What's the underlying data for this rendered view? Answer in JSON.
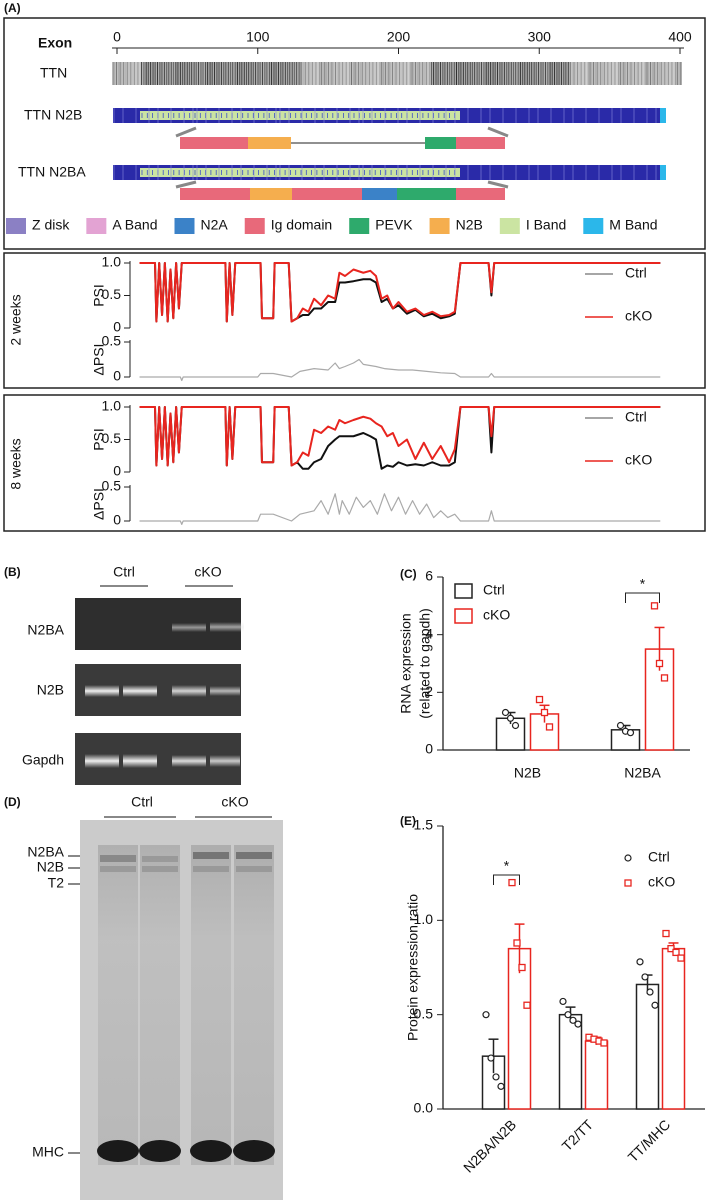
{
  "panel_labels": [
    "(A)",
    "(B)",
    "(C)",
    "(D)",
    "(E)"
  ],
  "gel_b": {
    "groups": [
      "Ctrl",
      "cKO"
    ],
    "rows": [
      "N2BA",
      "N2B",
      "Gapdh"
    ]
  },
  "gel_d": {
    "groups": [
      "Ctrl",
      "cKO"
    ],
    "markers": [
      "N2BA",
      "N2B",
      "T2",
      "MHC"
    ]
  },
  "chart_data": [
    {
      "type": "track",
      "xlabel": "Exon",
      "xlim": [
        0,
        400
      ],
      "xticks": [
        0,
        100,
        200,
        300,
        400
      ],
      "tracks": [
        "TTN",
        "TTN N2B",
        "TTN N2BA"
      ],
      "legend": [
        {
          "name": "Z disk",
          "color": "#8b80c4"
        },
        {
          "name": "A Band",
          "color": "#e3a3d3"
        },
        {
          "name": "N2A",
          "color": "#3b82c8"
        },
        {
          "name": "Ig domain",
          "color": "#e8697a"
        },
        {
          "name": "PEVK",
          "color": "#2eaa6c"
        },
        {
          "name": "N2B",
          "color": "#f5ae4e"
        },
        {
          "name": "I Band",
          "color": "#cbe4a2"
        },
        {
          "name": "M Band",
          "color": "#2bb7ea"
        }
      ]
    },
    {
      "type": "line",
      "side_label": "2 weeks",
      "ylabel": "PSI",
      "xlim": [
        0,
        400
      ],
      "ylim": [
        0,
        1
      ],
      "yticks": [
        0,
        0.5,
        {
          "value": 1,
          "label": "1.0"
        }
      ],
      "x": [
        16,
        27,
        28,
        30,
        32,
        34,
        36,
        38,
        40,
        42,
        44,
        46,
        48,
        77,
        78,
        80,
        82,
        84,
        86,
        102,
        103,
        111,
        112,
        122,
        124,
        128,
        132,
        136,
        140,
        145,
        150,
        155,
        158,
        162,
        168,
        175,
        180,
        184,
        188,
        192,
        196,
        200,
        206,
        212,
        218,
        224,
        230,
        236,
        240,
        244,
        264,
        266,
        268,
        386
      ],
      "series": [
        {
          "name": "Ctrl",
          "color": "#111111",
          "values": [
            1,
            1,
            0.1,
            1,
            0.2,
            1,
            0.1,
            0.9,
            0.15,
            1,
            0.3,
            1,
            1,
            1,
            0.1,
            1,
            0.2,
            1,
            1,
            1,
            0.15,
            0.15,
            1,
            1,
            0.1,
            0.15,
            0.2,
            0.2,
            0.3,
            0.3,
            0.4,
            0.4,
            0.7,
            0.7,
            0.72,
            0.75,
            0.75,
            0.7,
            0.4,
            0.45,
            0.3,
            0.35,
            0.22,
            0.28,
            0.18,
            0.22,
            0.15,
            0.18,
            0.22,
            1,
            1,
            0.5,
            1,
            1
          ]
        },
        {
          "name": "cKO",
          "color": "#e8251f",
          "values": [
            1,
            1,
            0.1,
            1,
            0.2,
            1,
            0.1,
            0.9,
            0.15,
            1,
            0.3,
            1,
            1,
            1,
            0.1,
            1,
            0.2,
            1,
            1,
            1,
            0.15,
            0.15,
            1,
            1,
            0.1,
            0.15,
            0.3,
            0.25,
            0.45,
            0.35,
            0.5,
            0.45,
            0.85,
            0.8,
            0.9,
            0.85,
            0.88,
            0.8,
            0.45,
            0.5,
            0.3,
            0.4,
            0.25,
            0.3,
            0.2,
            0.25,
            0.18,
            0.2,
            0.25,
            1,
            1,
            0.55,
            1,
            1
          ]
        }
      ]
    },
    {
      "type": "line",
      "ylabel": "ΔPSI",
      "xlim": [
        0,
        400
      ],
      "ylim": [
        0,
        0.5
      ],
      "yticks": [
        0,
        0.5
      ],
      "x": [
        16,
        45,
        46,
        47,
        100,
        102,
        111,
        124,
        130,
        140,
        150,
        155,
        158,
        162,
        168,
        172,
        175,
        184,
        190,
        200,
        210,
        220,
        230,
        240,
        244,
        264,
        266,
        268,
        386
      ],
      "series": [
        {
          "color": "#aaaaaa",
          "values": [
            0,
            0,
            -0.05,
            0,
            0,
            0.05,
            0.05,
            0,
            0.08,
            0.12,
            0.1,
            0.2,
            0.12,
            0.15,
            0.2,
            0.25,
            0.18,
            0.15,
            0.12,
            0.1,
            0.1,
            0.08,
            0.06,
            0.05,
            0,
            0,
            0.05,
            0,
            0
          ]
        }
      ]
    },
    {
      "type": "line",
      "side_label": "8 weeks",
      "ylabel": "PSI",
      "xlim": [
        0,
        400
      ],
      "ylim": [
        0,
        1
      ],
      "yticks": [
        0,
        0.5,
        {
          "value": 1,
          "label": "1.0"
        }
      ],
      "x": [
        16,
        27,
        28,
        30,
        32,
        34,
        36,
        38,
        40,
        42,
        44,
        46,
        48,
        77,
        78,
        80,
        82,
        84,
        86,
        102,
        103,
        111,
        112,
        122,
        124,
        128,
        132,
        136,
        140,
        145,
        150,
        155,
        158,
        162,
        168,
        175,
        180,
        184,
        188,
        192,
        196,
        200,
        206,
        212,
        218,
        224,
        230,
        236,
        240,
        244,
        264,
        266,
        268,
        386
      ],
      "series": [
        {
          "name": "Ctrl",
          "color": "#111111",
          "values": [
            1,
            1,
            0.1,
            1,
            0.2,
            1,
            0.1,
            0.9,
            0.15,
            1,
            0.3,
            1,
            1,
            1,
            0.1,
            1,
            0.2,
            1,
            1,
            1,
            0.15,
            0.15,
            1,
            1,
            0.1,
            0.15,
            0.05,
            0.05,
            0.15,
            0.2,
            0.4,
            0.5,
            0.55,
            0.55,
            0.55,
            0.6,
            0.55,
            0.5,
            0.05,
            0.1,
            0.08,
            0.15,
            0.1,
            0.12,
            0.1,
            0.15,
            0.1,
            0.1,
            0.15,
            1,
            1,
            0.3,
            1,
            1
          ]
        },
        {
          "name": "cKO",
          "color": "#e8251f",
          "values": [
            1,
            1,
            0.1,
            1,
            0.2,
            1,
            0.1,
            0.9,
            0.15,
            1,
            0.3,
            1,
            1,
            1,
            0.1,
            1,
            0.2,
            1,
            1,
            1,
            0.15,
            0.15,
            1,
            1,
            0.1,
            0.15,
            0.3,
            0.25,
            0.65,
            0.6,
            0.7,
            0.65,
            0.8,
            0.75,
            0.8,
            0.85,
            0.82,
            0.75,
            0.7,
            0.55,
            0.6,
            0.4,
            0.5,
            0.2,
            0.45,
            0.2,
            0.4,
            0.15,
            0.35,
            1,
            1,
            0.55,
            1,
            1
          ]
        }
      ]
    },
    {
      "type": "line",
      "ylabel": "ΔPSI",
      "xlim": [
        0,
        400
      ],
      "ylim": [
        0,
        0.5
      ],
      "yticks": [
        0,
        0.5
      ],
      "x": [
        16,
        45,
        46,
        47,
        100,
        102,
        111,
        124,
        130,
        140,
        145,
        150,
        155,
        158,
        160,
        165,
        170,
        175,
        180,
        185,
        190,
        195,
        200,
        205,
        210,
        215,
        220,
        225,
        230,
        235,
        240,
        244,
        264,
        266,
        268,
        386
      ],
      "series": [
        {
          "color": "#aaaaaa",
          "values": [
            0,
            0,
            -0.05,
            0,
            0,
            0.1,
            0.1,
            0,
            0.1,
            0.15,
            0.3,
            0.1,
            0.4,
            0.1,
            0.3,
            0.1,
            0.35,
            0.2,
            0.3,
            0.1,
            0.4,
            0.15,
            0.35,
            0.1,
            0.3,
            0.1,
            0.25,
            0.05,
            0.15,
            0.05,
            0.1,
            0,
            0,
            0.15,
            0,
            0
          ]
        }
      ]
    },
    {
      "type": "bar",
      "ylabel": [
        "RNA expression",
        "(related to gapdh)"
      ],
      "significance": "*",
      "legend": "upper left",
      "legend_marker": "box",
      "categories": [
        "N2B",
        "N2BA"
      ],
      "ylim": [
        0,
        6
      ],
      "yticks": [
        0,
        2,
        4,
        6
      ],
      "series": [
        {
          "name": "Ctrl",
          "color": "#222222",
          "marker": "circle",
          "values": [
            1.1,
            0.7
          ],
          "errors": [
            0.2,
            0.15
          ],
          "points": [
            [
              1.3,
              1.1,
              0.85
            ],
            [
              0.85,
              0.65,
              0.6
            ]
          ]
        },
        {
          "name": "cKO",
          "color": "#e8251f",
          "marker": "square",
          "values": [
            1.25,
            3.5
          ],
          "errors": [
            0.3,
            0.75
          ],
          "points": [
            [
              1.75,
              1.3,
              0.8
            ],
            [
              5.0,
              3.0,
              2.5
            ]
          ]
        }
      ]
    },
    {
      "type": "bar",
      "ylabel": [
        "Protein expression ratio"
      ],
      "significance": "*",
      "legend": "upper right",
      "legend_marker": "point",
      "xtick_rotation": 45,
      "categories": [
        "N2BA/N2B",
        "T2/TT",
        "TT/MHC"
      ],
      "ylim": [
        0,
        1.5
      ],
      "yticks": [
        {
          "value": 0,
          "label": "0.0"
        },
        0.5,
        {
          "value": 1,
          "label": "1.0"
        },
        1.5
      ],
      "series": [
        {
          "name": "Ctrl",
          "color": "#222222",
          "marker": "circle",
          "values": [
            0.28,
            0.5,
            0.66
          ],
          "errors": [
            0.09,
            0.04,
            0.05
          ],
          "points": [
            [
              0.5,
              0.27,
              0.17,
              0.12
            ],
            [
              0.57,
              0.5,
              0.47,
              0.45
            ],
            [
              0.78,
              0.7,
              0.62,
              0.55
            ]
          ]
        },
        {
          "name": "cKO",
          "color": "#e8251f",
          "marker": "square",
          "values": [
            0.85,
            0.36,
            0.85
          ],
          "errors": [
            0.13,
            0.02,
            0.03
          ],
          "points": [
            [
              1.2,
              0.88,
              0.75,
              0.55
            ],
            [
              0.38,
              0.37,
              0.36,
              0.35
            ],
            [
              0.93,
              0.85,
              0.83,
              0.8
            ]
          ]
        }
      ]
    }
  ]
}
